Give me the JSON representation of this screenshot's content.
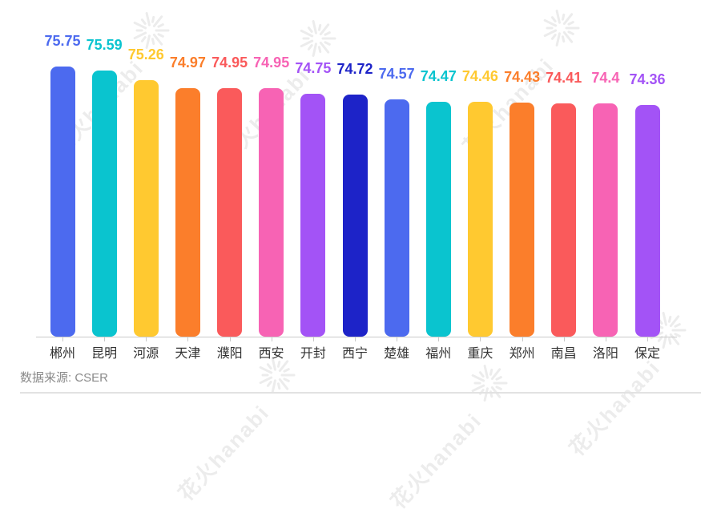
{
  "watermark": {
    "text": "花火hanabi",
    "icon": "firework-burst",
    "color": "#ececec"
  },
  "source": {
    "label": "数据来源: CSER"
  },
  "axis": {
    "line_color": "#c9c9c9",
    "label_color": "#333333"
  },
  "chart_data": {
    "type": "bar",
    "title": "",
    "xlabel": "",
    "ylabel": "",
    "categories": [
      "郴州",
      "昆明",
      "河源",
      "天津",
      "濮阳",
      "西安",
      "开封",
      "西宁",
      "楚雄",
      "福州",
      "重庆",
      "郑州",
      "南昌",
      "洛阳",
      "保定"
    ],
    "values": [
      75.75,
      75.59,
      75.26,
      74.97,
      74.95,
      74.95,
      74.75,
      74.72,
      74.57,
      74.47,
      74.46,
      74.43,
      74.41,
      74.4,
      74.36
    ],
    "value_labels": true,
    "ylim": [
      66,
      76
    ],
    "grid": false,
    "legend": null,
    "color_cycle": [
      "#4C6AEF",
      "#0AC4CF",
      "#FFC930",
      "#FB7E2B",
      "#FA5A5B",
      "#F763B4",
      "#A353F6",
      "#1D23C8"
    ]
  }
}
